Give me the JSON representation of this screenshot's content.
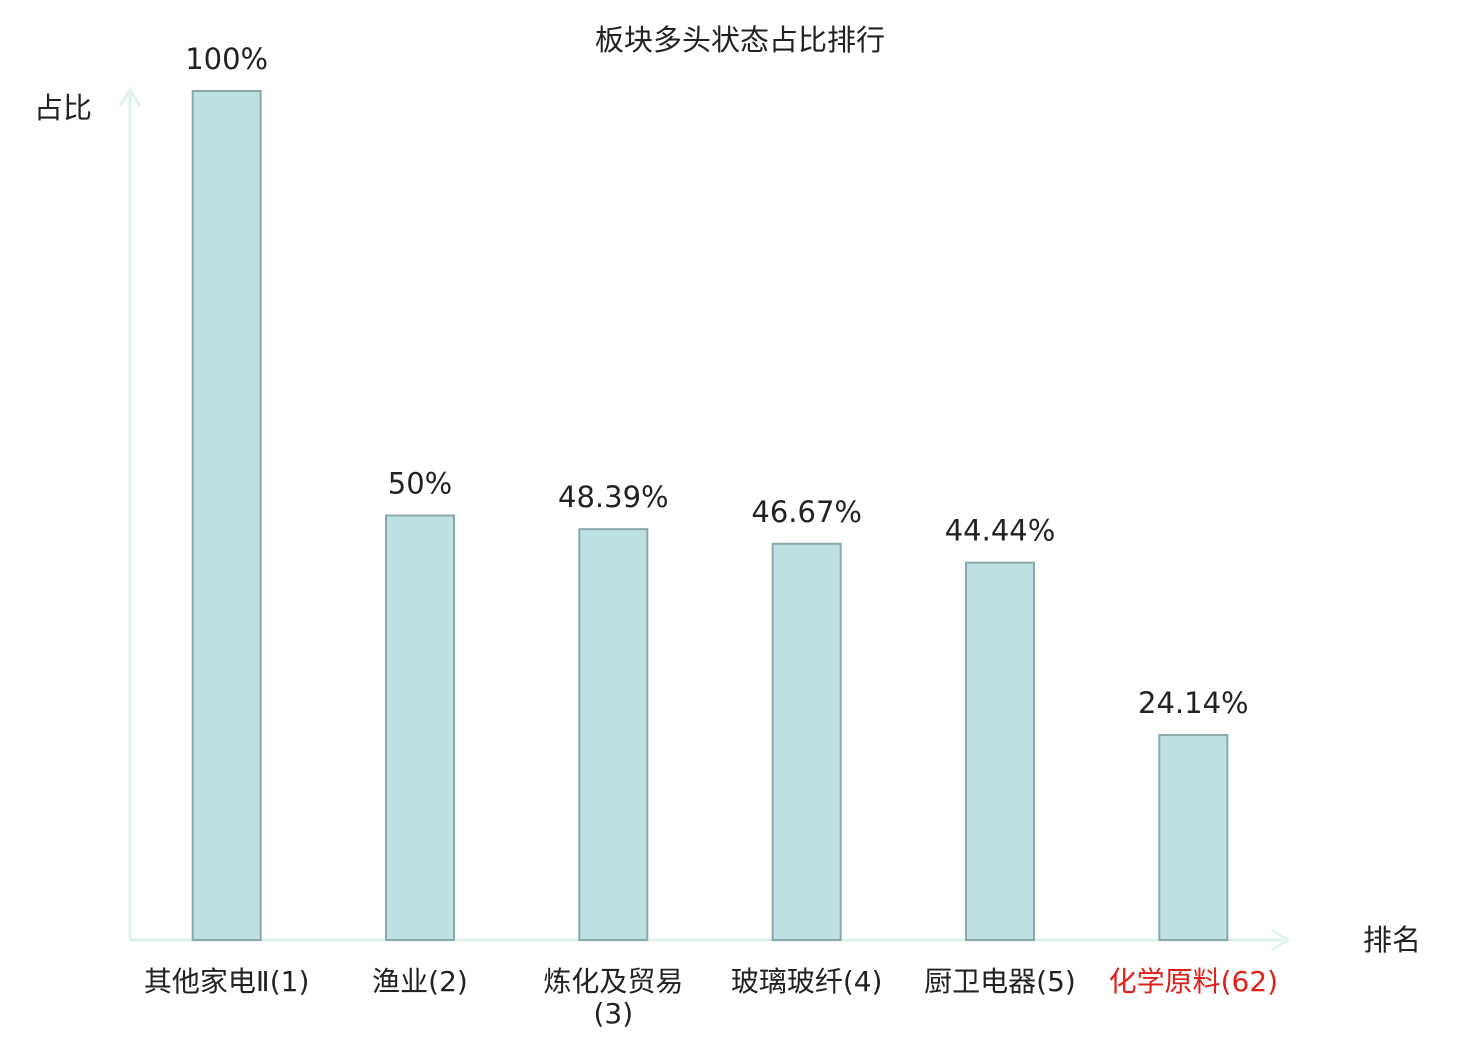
{
  "chart_data": {
    "type": "bar",
    "title": "板块多头状态占比排行",
    "y_label": "占比",
    "x_label": "排名",
    "categories": [
      "其他家电Ⅱ(1)",
      "渔业(2)",
      "炼化及贸易(3)",
      "玻璃玻纤(4)",
      "厨卫电器(5)",
      "化学原料(62)"
    ],
    "values": [
      100,
      50,
      48.39,
      46.67,
      44.44,
      24.14
    ],
    "value_labels": [
      "100%",
      "50%",
      "48.39%",
      "46.67%",
      "44.44%",
      "24.14%"
    ],
    "label_colors": [
      "#222222",
      "#222222",
      "#222222",
      "#222222",
      "#222222",
      "#e0201b"
    ],
    "color": "#bde0e3",
    "edge_color": "#8aa8aa",
    "ylim": [
      0,
      100
    ]
  }
}
